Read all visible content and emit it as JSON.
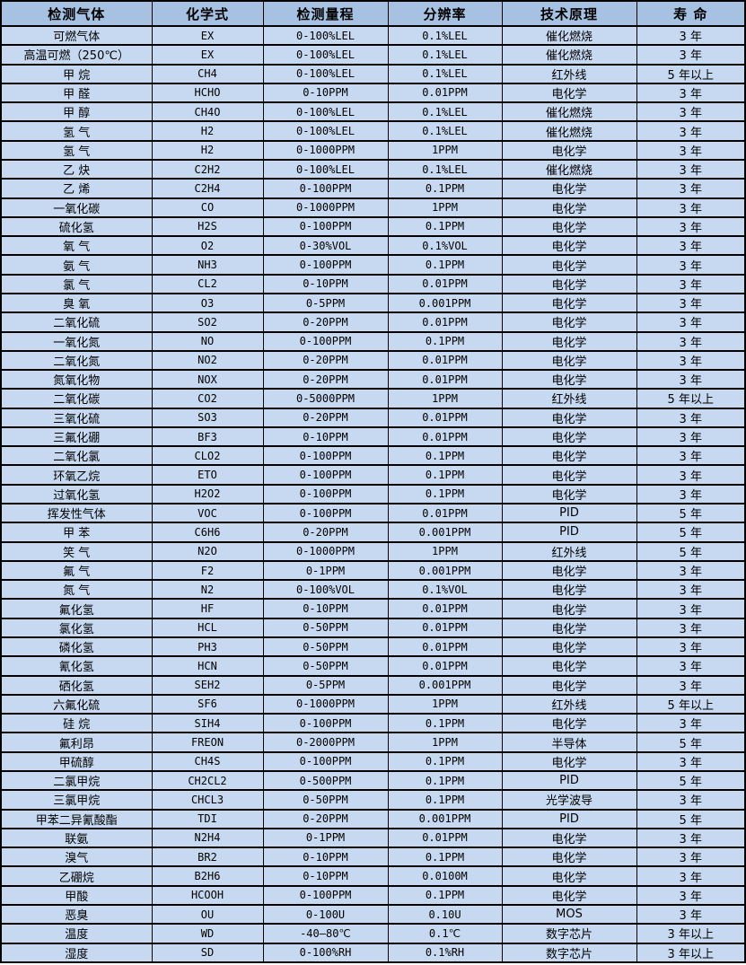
{
  "colors": {
    "header_bg": "#a6c1e1",
    "row_bg": "#c7d9f1",
    "border": "#000000",
    "text": "#000000"
  },
  "table": {
    "columns": [
      {
        "key": "gas",
        "label": "检测气体"
      },
      {
        "key": "formula",
        "label": "化学式"
      },
      {
        "key": "range",
        "label": "检测量程"
      },
      {
        "key": "resolution",
        "label": "分辨率"
      },
      {
        "key": "principle",
        "label": "技术原理"
      },
      {
        "key": "life",
        "label": "寿 命"
      }
    ],
    "rows": [
      [
        "可燃气体",
        "EX",
        "0-100%LEL",
        "0.1%LEL",
        "催化燃烧",
        "3 年"
      ],
      [
        "高温可燃（250℃）",
        "EX",
        "0-100%LEL",
        "0.1%LEL",
        "催化燃烧",
        "3 年"
      ],
      [
        "甲 烷",
        "CH4",
        "0-100%LEL",
        "0.1%LEL",
        "红外线",
        "5 年以上"
      ],
      [
        "甲 醛",
        "HCHO",
        "0-10PPM",
        "0.01PPM",
        "电化学",
        "3 年"
      ],
      [
        "甲 醇",
        "CH4O",
        "0-100%LEL",
        "0.1%LEL",
        "催化燃烧",
        "3 年"
      ],
      [
        "氢 气",
        "H2",
        "0-100%LEL",
        "0.1%LEL",
        "催化燃烧",
        "3 年"
      ],
      [
        "氢 气",
        "H2",
        "0-1000PPM",
        "1PPM",
        "电化学",
        "3 年"
      ],
      [
        "乙 炔",
        "C2H2",
        "0-100%LEL",
        "0.1%LEL",
        "催化燃烧",
        "3 年"
      ],
      [
        "乙 烯",
        "C2H4",
        "0-100PPM",
        "0.1PPM",
        "电化学",
        "3 年"
      ],
      [
        "一氧化碳",
        "CO",
        "0-1000PPM",
        "1PPM",
        "电化学",
        "3 年"
      ],
      [
        "硫化氢",
        "H2S",
        "0-100PPM",
        "0.1PPM",
        "电化学",
        "3 年"
      ],
      [
        "氧 气",
        "O2",
        "0-30%VOL",
        "0.1%VOL",
        "电化学",
        "3 年"
      ],
      [
        "氨 气",
        "NH3",
        "0-100PPM",
        "0.1PPM",
        "电化学",
        "3 年"
      ],
      [
        "氯 气",
        "CL2",
        "0-10PPM",
        "0.01PPM",
        "电化学",
        "3 年"
      ],
      [
        "臭 氧",
        "O3",
        "0-5PPM",
        "0.001PPM",
        "电化学",
        "3 年"
      ],
      [
        "二氧化硫",
        "SO2",
        "0-20PPM",
        "0.01PPM",
        "电化学",
        "3 年"
      ],
      [
        "一氧化氮",
        "NO",
        "0-100PPM",
        "0.1PPM",
        "电化学",
        "3 年"
      ],
      [
        "二氧化氮",
        "NO2",
        "0-20PPM",
        "0.01PPM",
        "电化学",
        "3 年"
      ],
      [
        "氮氧化物",
        "NOX",
        "0-20PPM",
        "0.01PPM",
        "电化学",
        "3 年"
      ],
      [
        "二氧化碳",
        "CO2",
        "0-5000PPM",
        "1PPM",
        "红外线",
        "5 年以上"
      ],
      [
        "三氧化硫",
        "SO3",
        "0-20PPM",
        "0.01PPM",
        "电化学",
        "3 年"
      ],
      [
        "三氟化硼",
        "BF3",
        "0-10PPM",
        "0.01PPM",
        "电化学",
        "3 年"
      ],
      [
        "二氧化氯",
        "CLO2",
        "0-100PPM",
        "0.1PPM",
        "电化学",
        "3 年"
      ],
      [
        "环氧乙烷",
        "ETO",
        "0-100PPM",
        "0.1PPM",
        "电化学",
        "3 年"
      ],
      [
        "过氧化氢",
        "H2O2",
        "0-100PPM",
        "0.1PPM",
        "电化学",
        "3 年"
      ],
      [
        "挥发性气体",
        "VOC",
        "0-100PPM",
        "0.01PPM",
        "PID",
        "5 年"
      ],
      [
        "甲 苯",
        "C6H6",
        "0-20PPM",
        "0.001PPM",
        "PID",
        "5 年"
      ],
      [
        "笑 气",
        "N2O",
        "0-1000PPM",
        "1PPM",
        "红外线",
        "5 年"
      ],
      [
        "氟 气",
        "F2",
        "0-1PPM",
        "0.001PPM",
        "电化学",
        "3 年"
      ],
      [
        "氮 气",
        "N2",
        "0-100%VOL",
        "0.1%VOL",
        "电化学",
        "3 年"
      ],
      [
        "氟化氢",
        "HF",
        "0-10PPM",
        "0.01PPM",
        "电化学",
        "3 年"
      ],
      [
        "氯化氢",
        "HCL",
        "0-50PPM",
        "0.01PPM",
        "电化学",
        "3 年"
      ],
      [
        "磷化氢",
        "PH3",
        "0-50PPM",
        "0.01PPM",
        "电化学",
        "3 年"
      ],
      [
        "氰化氢",
        "HCN",
        "0-50PPM",
        "0.01PPM",
        "电化学",
        "3 年"
      ],
      [
        "硒化氢",
        "SEH2",
        "0-5PPM",
        "0.001PPM",
        "电化学",
        "3 年"
      ],
      [
        "六氟化硫",
        "SF6",
        "0-1000PPM",
        "1PPM",
        "红外线",
        "5 年以上"
      ],
      [
        "硅 烷",
        "SIH4",
        "0-100PPM",
        "0.1PPM",
        "电化学",
        "3 年"
      ],
      [
        "氟利昂",
        "FREON",
        "0-2000PPM",
        "1PPM",
        "半导体",
        "5 年"
      ],
      [
        "甲硫醇",
        "CH4S",
        "0-100PPM",
        "0.1PPM",
        "电化学",
        "3 年"
      ],
      [
        "二氯甲烷",
        "CH2CL2",
        "0-500PPM",
        "0.1PPM",
        "PID",
        "5 年"
      ],
      [
        "三氯甲烷",
        "CHCL3",
        "0-50PPM",
        "0.1PPM",
        "光学波导",
        "3 年"
      ],
      [
        "甲苯二异氰酸酯",
        "TDI",
        "0-20PPM",
        "0.001PPM",
        "PID",
        "5 年"
      ],
      [
        "联氨",
        "N2H4",
        "0-1PPM",
        "0.01PPM",
        "电化学",
        "3 年"
      ],
      [
        "溴气",
        "BR2",
        "0-10PPM",
        "0.1PPM",
        "电化学",
        "3 年"
      ],
      [
        "乙硼烷",
        "B2H6",
        "0-10PPM",
        "0.0100M",
        "电化学",
        "3 年"
      ],
      [
        "甲酸",
        "HCOOH",
        "0-100PPM",
        "0.1PPM",
        "电化学",
        "3 年"
      ],
      [
        "恶臭",
        "OU",
        "0-100U",
        "0.10U",
        "MOS",
        "3 年"
      ],
      [
        "温度",
        "WD",
        "-40—80℃",
        "0.1℃",
        "数字芯片",
        "3 年以上"
      ],
      [
        "湿度",
        "SD",
        "0-100%RH",
        "0.1%RH",
        "数字芯片",
        "3 年以上"
      ]
    ]
  }
}
